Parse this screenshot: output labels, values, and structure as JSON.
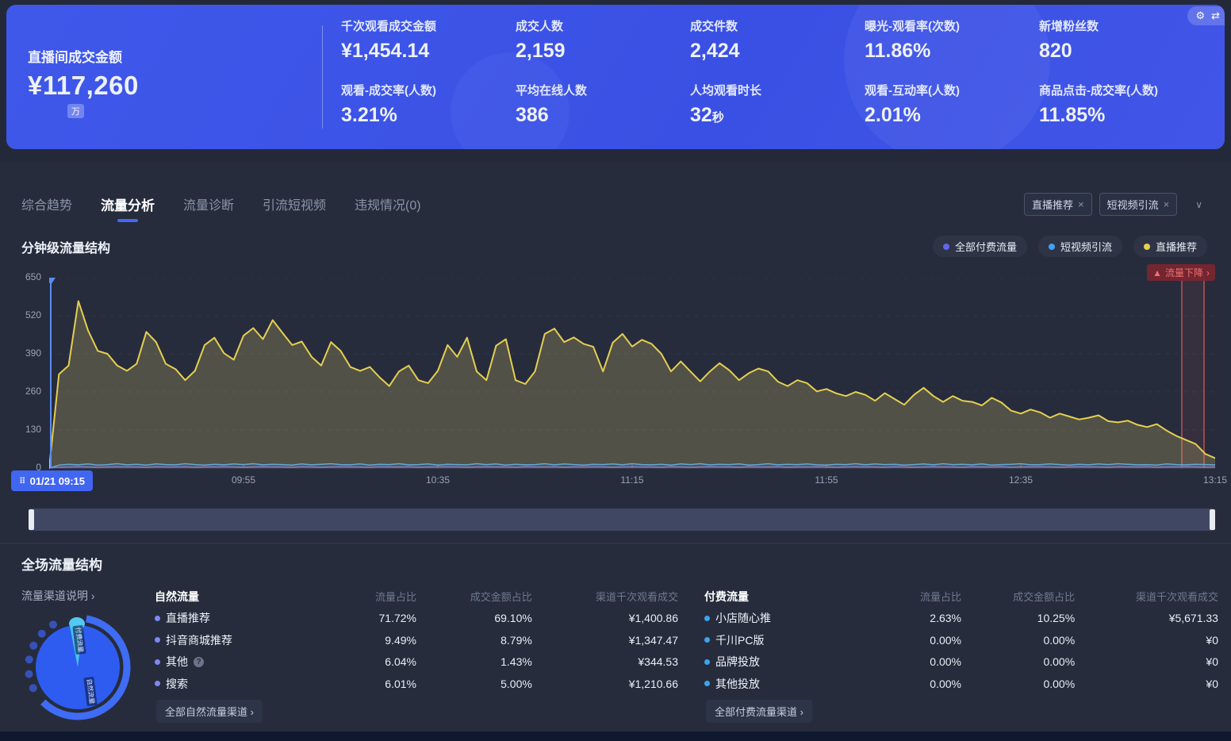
{
  "banner": {
    "main_metric": {
      "label": "直播间成交金额",
      "value": "¥117,260",
      "unit_badge": "万"
    },
    "metrics": [
      {
        "label": "千次观看成交金额",
        "value": "¥1,454.14"
      },
      {
        "label": "成交人数",
        "value": "2,159"
      },
      {
        "label": "成交件数",
        "value": "2,424"
      },
      {
        "label": "曝光-观看率(次数)",
        "value": "11.86%"
      },
      {
        "label": "新增粉丝数",
        "value": "820"
      },
      {
        "label": "观看-成交率(人数)",
        "value": "3.21%"
      },
      {
        "label": "平均在线人数",
        "value": "386"
      },
      {
        "label": "人均观看时长",
        "value": "32",
        "unit": "秒"
      },
      {
        "label": "观看-互动率(人数)",
        "value": "2.01%"
      },
      {
        "label": "商品点击-成交率(人数)",
        "value": "11.85%"
      }
    ],
    "corner_icons": [
      "gear-icon",
      "swap-icon"
    ]
  },
  "tabs": [
    {
      "label": "综合趋势",
      "active": false
    },
    {
      "label": "流量分析",
      "active": true
    },
    {
      "label": "流量诊断",
      "active": false
    },
    {
      "label": "引流短视频",
      "active": false
    },
    {
      "label": "违规情况(0)",
      "active": false
    }
  ],
  "filters": {
    "chips": [
      "直播推荐",
      "短视频引流"
    ]
  },
  "chart_section": {
    "title": "分钟级流量结构",
    "legend": [
      {
        "label": "全部付费流量",
        "color": "#6165e8"
      },
      {
        "label": "短视频引流",
        "color": "#3fa2f5"
      },
      {
        "label": "直播推荐",
        "color": "#e5cf4f"
      }
    ],
    "time_badge": "01/21 09:15",
    "alert_label": "流量下降"
  },
  "chart_data": [
    {
      "type": "line",
      "title": "分钟级流量结构",
      "x_tick_labels": [
        "01/21 09:15",
        "09:55",
        "10:35",
        "11:15",
        "11:55",
        "12:35",
        "13:15"
      ],
      "x_unit": "time, 2-minute sampling from 09:15 to 13:15",
      "y_ticks": [
        0,
        130,
        260,
        390,
        520,
        650
      ],
      "ylim": [
        0,
        650
      ],
      "grid": true,
      "legend_position": "top-right",
      "annotation": {
        "label": "流量下降",
        "x_frac_start": 0.9714,
        "x_frac_end": 0.9905,
        "color": "#e25b5b"
      },
      "series": [
        {
          "name": "全部付费流量",
          "color": "#6165e8",
          "values": [
            0,
            3,
            4,
            5,
            4,
            3,
            4,
            5,
            4,
            4,
            3,
            5,
            4,
            4,
            5,
            3,
            4,
            4,
            5,
            4,
            3,
            4,
            5,
            4,
            4,
            3,
            5,
            4,
            3,
            4,
            5,
            4,
            4,
            3,
            5,
            4,
            4,
            5,
            3,
            4,
            4,
            5,
            4,
            3,
            4,
            5,
            4,
            4,
            3,
            5,
            4,
            4,
            5,
            3,
            4,
            4,
            5,
            4,
            3,
            4,
            5,
            4,
            4,
            3,
            5,
            4,
            3,
            4,
            5,
            4,
            4,
            3,
            5,
            4,
            4,
            5,
            3,
            4,
            4,
            5,
            4,
            3,
            4,
            5,
            4,
            4,
            3,
            5,
            4,
            3,
            4,
            5,
            4,
            4,
            3,
            5,
            4,
            4,
            5,
            3,
            4,
            4,
            5,
            4,
            3,
            4,
            5,
            4,
            4,
            3,
            5,
            4,
            4,
            5,
            3,
            4,
            4,
            5,
            4,
            3,
            4
          ]
        },
        {
          "name": "短视频引流",
          "color": "#3fa2f5",
          "values": [
            0,
            10,
            13,
            11,
            14,
            10,
            12,
            15,
            11,
            13,
            10,
            14,
            12,
            11,
            15,
            12,
            10,
            13,
            11,
            14,
            12,
            15,
            11,
            13,
            12,
            10,
            14,
            11,
            13,
            15,
            12,
            11,
            14,
            10,
            13,
            12,
            15,
            11,
            12,
            14,
            10,
            13,
            12,
            11,
            15,
            12,
            14,
            10,
            13,
            11,
            12,
            15,
            11,
            14,
            12,
            10,
            13,
            12,
            14,
            11,
            15,
            12,
            11,
            13,
            10,
            14,
            12,
            15,
            11,
            13,
            12,
            14,
            10,
            12,
            15,
            11,
            13,
            12,
            14,
            11,
            10,
            13,
            12,
            15,
            11,
            14,
            12,
            13,
            10,
            12,
            14,
            11,
            15,
            12,
            13,
            11,
            14,
            10,
            12,
            13,
            15,
            11,
            12,
            14,
            12,
            10,
            13,
            11,
            14,
            12,
            15,
            13,
            11,
            12,
            10,
            14,
            12,
            11,
            13,
            12,
            11
          ]
        },
        {
          "name": "直播推荐",
          "color": "#e5cf4f",
          "fill": "rgba(205,190,110,0.26)",
          "values": [
            0,
            320,
            350,
            570,
            470,
            400,
            390,
            350,
            332,
            356,
            465,
            430,
            356,
            338,
            300,
            332,
            420,
            445,
            392,
            370,
            452,
            478,
            440,
            505,
            462,
            420,
            432,
            380,
            350,
            430,
            400,
            345,
            332,
            345,
            310,
            280,
            330,
            350,
            300,
            290,
            332,
            420,
            380,
            445,
            330,
            300,
            418,
            440,
            300,
            287,
            330,
            458,
            476,
            430,
            446,
            424,
            414,
            330,
            428,
            458,
            415,
            438,
            424,
            390,
            330,
            364,
            330,
            296,
            330,
            358,
            334,
            300,
            324,
            340,
            330,
            295,
            280,
            300,
            290,
            262,
            270,
            255,
            246,
            260,
            250,
            230,
            256,
            236,
            216,
            250,
            274,
            246,
            226,
            246,
            230,
            226,
            214,
            240,
            224,
            196,
            186,
            200,
            190,
            172,
            186,
            176,
            166,
            172,
            180,
            160,
            156,
            162,
            148,
            140,
            150,
            128,
            110,
            96,
            82,
            48,
            34
          ]
        }
      ]
    },
    {
      "type": "pie",
      "title": "全场流量结构占比",
      "labels": [
        "自然流量",
        "付费流量"
      ],
      "values": [
        97.37,
        2.63
      ],
      "colors": [
        "#2e5cf0",
        "#45c0f0"
      ]
    }
  ],
  "bottom": {
    "title": "全场流量结构",
    "channel_note_link": "流量渠道说明",
    "donut_labels": {
      "paid": "付费流量",
      "natural": "自然流量"
    },
    "natural": {
      "columns": [
        "自然流量",
        "流量占比",
        "成交金额占比",
        "渠道千次观看成交"
      ],
      "dot_color": "#7d88f2",
      "rows": [
        {
          "name": "直播推荐",
          "traffic_share": "71.72%",
          "gmv_share": "69.10%",
          "gpm": "¥1,400.86"
        },
        {
          "name": "抖音商城推荐",
          "traffic_share": "9.49%",
          "gmv_share": "8.79%",
          "gpm": "¥1,347.47"
        },
        {
          "name": "其他",
          "info": true,
          "traffic_share": "6.04%",
          "gmv_share": "1.43%",
          "gpm": "¥344.53"
        },
        {
          "name": "搜索",
          "traffic_share": "6.01%",
          "gmv_share": "5.00%",
          "gpm": "¥1,210.66"
        }
      ],
      "footer_link": "全部自然流量渠道"
    },
    "paid": {
      "columns": [
        "付费流量",
        "流量占比",
        "成交金额占比",
        "渠道千次观看成交"
      ],
      "dot_color": "#3ba4f0",
      "rows": [
        {
          "name": "小店随心推",
          "traffic_share": "2.63%",
          "gmv_share": "10.25%",
          "gpm": "¥5,671.33"
        },
        {
          "name": "千川PC版",
          "traffic_share": "0.00%",
          "gmv_share": "0.00%",
          "gpm": "¥0"
        },
        {
          "name": "品牌投放",
          "traffic_share": "0.00%",
          "gmv_share": "0.00%",
          "gpm": "¥0"
        },
        {
          "name": "其他投放",
          "traffic_share": "0.00%",
          "gmv_share": "0.00%",
          "gpm": "¥0"
        }
      ],
      "footer_link": "全部付费流量渠道"
    }
  }
}
